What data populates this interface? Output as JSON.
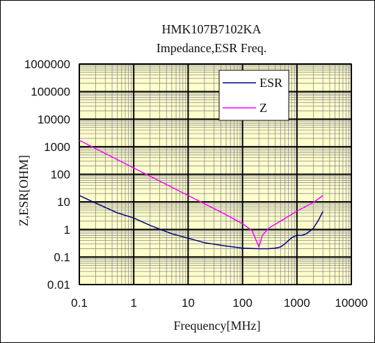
{
  "chart_data": {
    "type": "line",
    "title": "HMK107B7102KA",
    "subtitle": "Impedance,ESR Freq.",
    "xlabel": "Frequency[MHz]",
    "ylabel": "Z,ESR[OHM]",
    "xscale": "log",
    "yscale": "log",
    "xlim": [
      0.1,
      10000
    ],
    "ylim": [
      0.01,
      1000000
    ],
    "x_ticks": [
      "0.1",
      "1",
      "10",
      "100",
      "1000",
      "10000"
    ],
    "y_ticks": [
      "0.01",
      "0.1",
      "1",
      "10",
      "100",
      "1000",
      "10000",
      "100000",
      "1000000"
    ],
    "grid": true,
    "plot_background": "#ffffcc",
    "legend_position": "top-right",
    "series": [
      {
        "name": "ESR",
        "color": "#000080",
        "points": [
          [
            0.1,
            17
          ],
          [
            0.2,
            9
          ],
          [
            0.5,
            4
          ],
          [
            1,
            2.6
          ],
          [
            2,
            1.4
          ],
          [
            5,
            0.7
          ],
          [
            10,
            0.48
          ],
          [
            20,
            0.33
          ],
          [
            50,
            0.25
          ],
          [
            100,
            0.21
          ],
          [
            200,
            0.2
          ],
          [
            300,
            0.2
          ],
          [
            400,
            0.21
          ],
          [
            500,
            0.23
          ],
          [
            600,
            0.3
          ],
          [
            800,
            0.5
          ],
          [
            1000,
            0.62
          ],
          [
            1200,
            0.6
          ],
          [
            1500,
            0.7
          ],
          [
            2000,
            1.1
          ],
          [
            2500,
            2.2
          ],
          [
            3000,
            4.5
          ]
        ]
      },
      {
        "name": "Z",
        "color": "#ff00ff",
        "points": [
          [
            0.1,
            1700
          ],
          [
            0.2,
            850
          ],
          [
            0.5,
            340
          ],
          [
            1,
            170
          ],
          [
            2,
            85
          ],
          [
            5,
            34
          ],
          [
            10,
            17
          ],
          [
            20,
            8.5
          ],
          [
            50,
            3.4
          ],
          [
            100,
            1.6
          ],
          [
            150,
            0.9
          ],
          [
            200,
            0.23
          ],
          [
            230,
            0.6
          ],
          [
            300,
            1.1
          ],
          [
            500,
            2
          ],
          [
            1000,
            4.6
          ],
          [
            2000,
            9.5
          ],
          [
            3000,
            17
          ]
        ]
      }
    ]
  }
}
